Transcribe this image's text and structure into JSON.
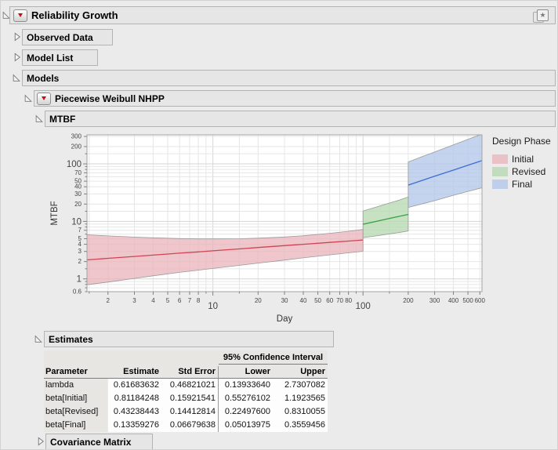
{
  "window": {
    "corner_icon_glyph": "★"
  },
  "headers": {
    "reliability_growth": "Reliability Growth",
    "observed_data": "Observed Data",
    "model_list": "Model List",
    "models": "Models",
    "piecewise_weibull_nhpp": "Piecewise Weibull NHPP",
    "mtbf": "MTBF",
    "estimates": "Estimates",
    "covariance_matrix": "Covariance Matrix"
  },
  "chart_data": {
    "type": "area",
    "title": "MTBF",
    "xlabel": "Day",
    "ylabel": "MTBF",
    "x_scale": "log",
    "y_scale": "log",
    "xlim": [
      1.45,
      620
    ],
    "ylim": [
      0.6,
      320
    ],
    "grid": true,
    "x_labeled_ticks": [
      2,
      3,
      4,
      5,
      6,
      7,
      8,
      10,
      20,
      30,
      40,
      50,
      60,
      70,
      80,
      100,
      200,
      300,
      400,
      500,
      600
    ],
    "x_major_ticks": [
      10,
      100
    ],
    "y_labeled_ticks": [
      0.6,
      1,
      2,
      3,
      4,
      5,
      7,
      10,
      20,
      30,
      40,
      50,
      70,
      100,
      200,
      300
    ],
    "y_major_ticks": [
      1,
      10,
      100
    ],
    "legend_title": "Design Phase",
    "legend_position": "right",
    "phase_boundaries": [
      100,
      200
    ],
    "series": [
      {
        "name": "Initial",
        "color": "#eab3ba",
        "line_color": "#cf4452",
        "x": [
          1.45,
          2,
          3,
          4,
          6,
          8,
          10,
          15,
          20,
          30,
          40,
          60,
          80,
          100
        ],
        "fit": [
          2.14,
          2.28,
          2.46,
          2.59,
          2.8,
          2.95,
          3.08,
          3.32,
          3.51,
          3.79,
          4.0,
          4.31,
          4.55,
          4.75
        ],
        "lower": [
          0.79,
          0.88,
          1.02,
          1.13,
          1.3,
          1.42,
          1.52,
          1.72,
          1.88,
          2.12,
          2.32,
          2.62,
          2.84,
          3.02
        ],
        "upper": [
          5.85,
          5.6,
          5.33,
          5.18,
          5.03,
          4.97,
          4.96,
          5.0,
          5.1,
          5.35,
          5.63,
          6.2,
          6.73,
          7.25
        ]
      },
      {
        "name": "Revised",
        "color": "#b3d8ad",
        "line_color": "#35a03f",
        "x": [
          100,
          120,
          140,
          170,
          200
        ],
        "fit": [
          8.93,
          9.9,
          10.81,
          12.07,
          13.23
        ],
        "lower": [
          5.2,
          5.55,
          5.9,
          6.35,
          6.8
        ],
        "upper": [
          15.2,
          17.5,
          19.8,
          23.0,
          26.5
        ]
      },
      {
        "name": "Final",
        "color": "#b0c5ea",
        "line_color": "#3c6dd5",
        "x": [
          200,
          250,
          300,
          400,
          500,
          600,
          620
        ],
        "fit": [
          42.8,
          51.9,
          60.9,
          78.0,
          94.7,
          110.9,
          114.1
        ],
        "lower": [
          17.5,
          20.3,
          22.9,
          28.4,
          33.3,
          37.6,
          38.3
        ],
        "upper": [
          108,
          135,
          161,
          214,
          267,
          320,
          330
        ]
      }
    ]
  },
  "estimates_table": {
    "ci_header": "95% Confidence Interval",
    "columns": [
      "Parameter",
      "Estimate",
      "Std Error",
      "Lower",
      "Upper"
    ],
    "rows": [
      {
        "parameter": "lambda",
        "estimate": "0.61683632",
        "std_error": "0.46821021",
        "lower": "0.13933640",
        "upper": "2.7307082"
      },
      {
        "parameter": "beta[Initial]",
        "estimate": "0.81184248",
        "std_error": "0.15921541",
        "lower": "0.55276102",
        "upper": "1.1923565"
      },
      {
        "parameter": "beta[Revised]",
        "estimate": "0.43238443",
        "std_error": "0.14412814",
        "lower": "0.22497600",
        "upper": "0.8310055"
      },
      {
        "parameter": "beta[Final]",
        "estimate": "0.13359276",
        "std_error": "0.06679638",
        "lower": "0.05013975",
        "upper": "0.3559456"
      }
    ]
  }
}
